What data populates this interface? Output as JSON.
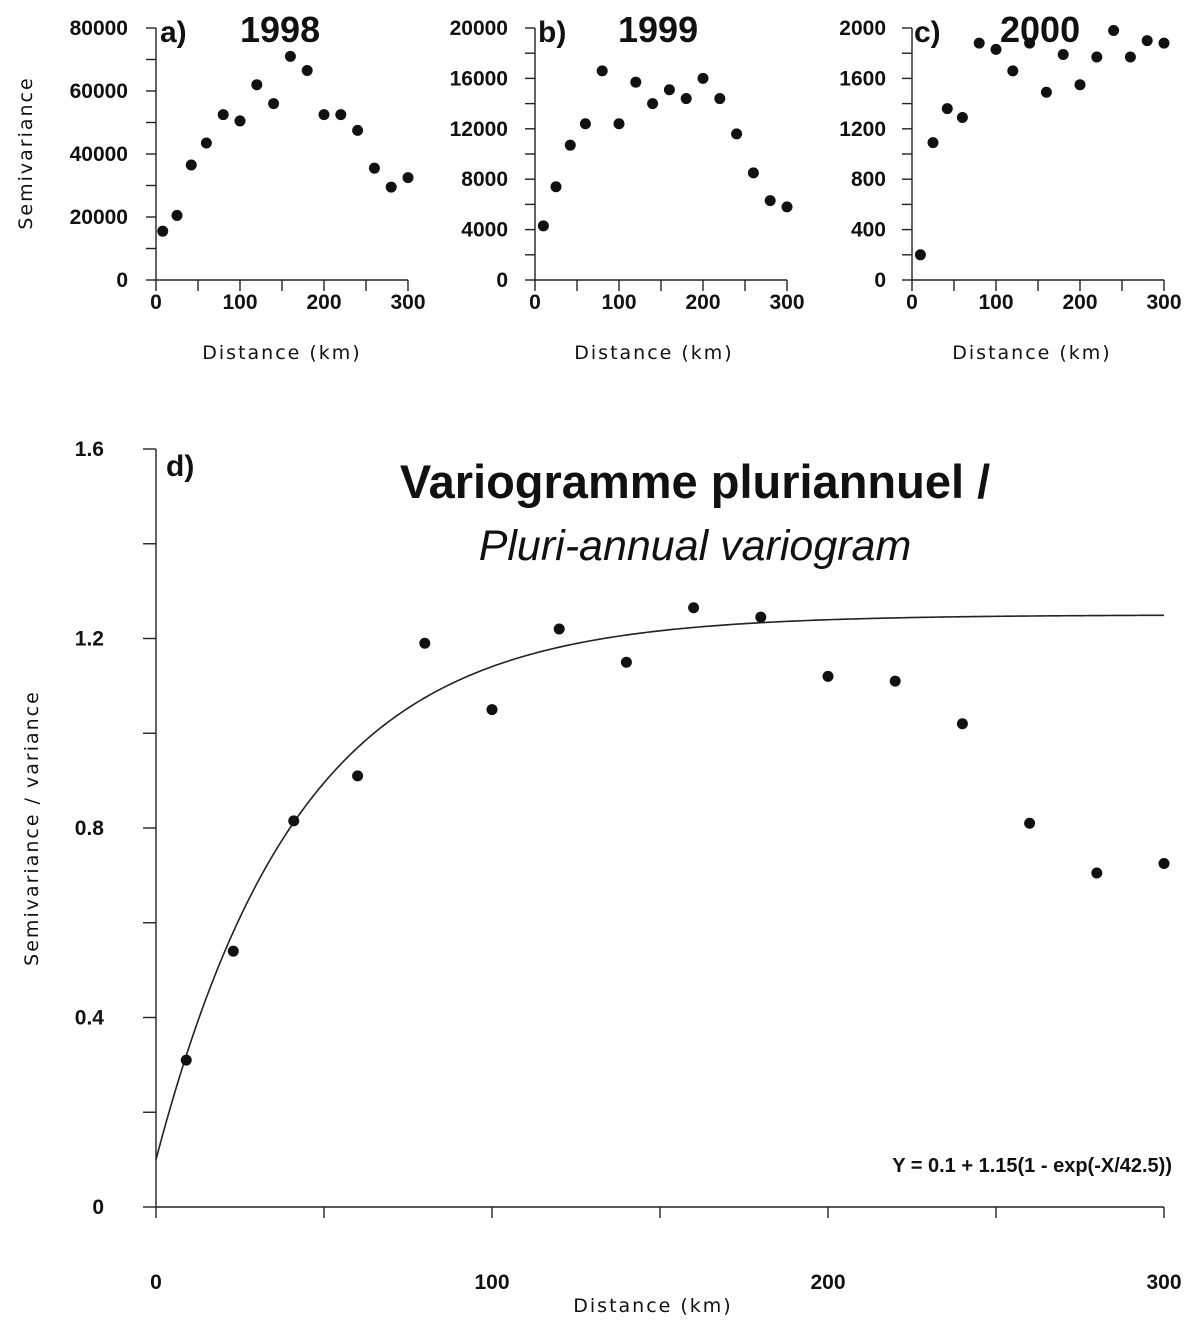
{
  "chart_data": [
    {
      "type": "scatter",
      "panel_label": "a)",
      "title": "1998",
      "xlabel": "Distance (km)",
      "ylabel": "Semivariance",
      "xlim": [
        0,
        300
      ],
      "ylim": [
        0,
        80000
      ],
      "xticks": [
        0,
        100,
        200,
        300
      ],
      "yticks": [
        0,
        20000,
        40000,
        60000,
        80000
      ],
      "x": [
        8,
        25,
        42,
        60,
        80,
        100,
        120,
        140,
        160,
        180,
        200,
        220,
        240,
        260,
        280,
        300
      ],
      "y": [
        15500,
        20500,
        36500,
        43500,
        52500,
        50500,
        62000,
        56000,
        71000,
        66500,
        52500,
        52500,
        47500,
        35500,
        29500,
        32500
      ]
    },
    {
      "type": "scatter",
      "panel_label": "b)",
      "title": "1999",
      "xlabel": "Distance (km)",
      "ylabel": "",
      "xlim": [
        0,
        300
      ],
      "ylim": [
        0,
        20000
      ],
      "xticks": [
        0,
        100,
        200,
        300
      ],
      "yticks": [
        0,
        4000,
        8000,
        12000,
        16000,
        20000
      ],
      "x": [
        10,
        25,
        42,
        60,
        80,
        100,
        120,
        140,
        160,
        180,
        200,
        220,
        240,
        260,
        280,
        300
      ],
      "y": [
        4300,
        7400,
        10700,
        12400,
        16600,
        12400,
        15700,
        14000,
        15100,
        14400,
        16000,
        14400,
        11600,
        8500,
        6300,
        5800
      ]
    },
    {
      "type": "scatter",
      "panel_label": "c)",
      "title": "2000",
      "xlabel": "Distance (km)",
      "ylabel": "",
      "xlim": [
        0,
        300
      ],
      "ylim": [
        0,
        2000
      ],
      "xticks": [
        0,
        100,
        200,
        300
      ],
      "yticks": [
        0,
        400,
        800,
        1200,
        1600,
        2000
      ],
      "x": [
        10,
        25,
        42,
        60,
        80,
        100,
        120,
        140,
        160,
        180,
        200,
        220,
        240,
        260,
        280,
        300
      ],
      "y": [
        200,
        1090,
        1360,
        1290,
        1880,
        1830,
        1660,
        1880,
        1490,
        1790,
        1550,
        1770,
        1980,
        1770,
        1900,
        1880
      ]
    },
    {
      "type": "scatter",
      "panel_label": "d)",
      "title": "Variogramme pluriannuel  /",
      "subtitle": "Pluri-annual variogram",
      "xlabel": "Distance (km)",
      "ylabel": "Semivariance / variance",
      "xlim": [
        0,
        300
      ],
      "ylim": [
        0,
        1.6
      ],
      "xticks": [
        0,
        100,
        200,
        300
      ],
      "yticks": [
        0,
        0.4,
        0.8,
        1.2,
        1.6
      ],
      "x": [
        9,
        23,
        41,
        60,
        80,
        100,
        120,
        140,
        160,
        180,
        200,
        220,
        240,
        260,
        280,
        300
      ],
      "y": [
        0.31,
        0.54,
        0.815,
        0.91,
        1.19,
        1.05,
        1.22,
        1.15,
        1.265,
        1.245,
        1.12,
        1.11,
        1.02,
        0.81,
        0.705,
        0.725
      ],
      "fit": {
        "formula": "Y = 0.1 + 1.15(1 - exp(-X/42.5))",
        "nugget": 0.1,
        "sill": 1.15,
        "range": 42.5
      }
    }
  ]
}
